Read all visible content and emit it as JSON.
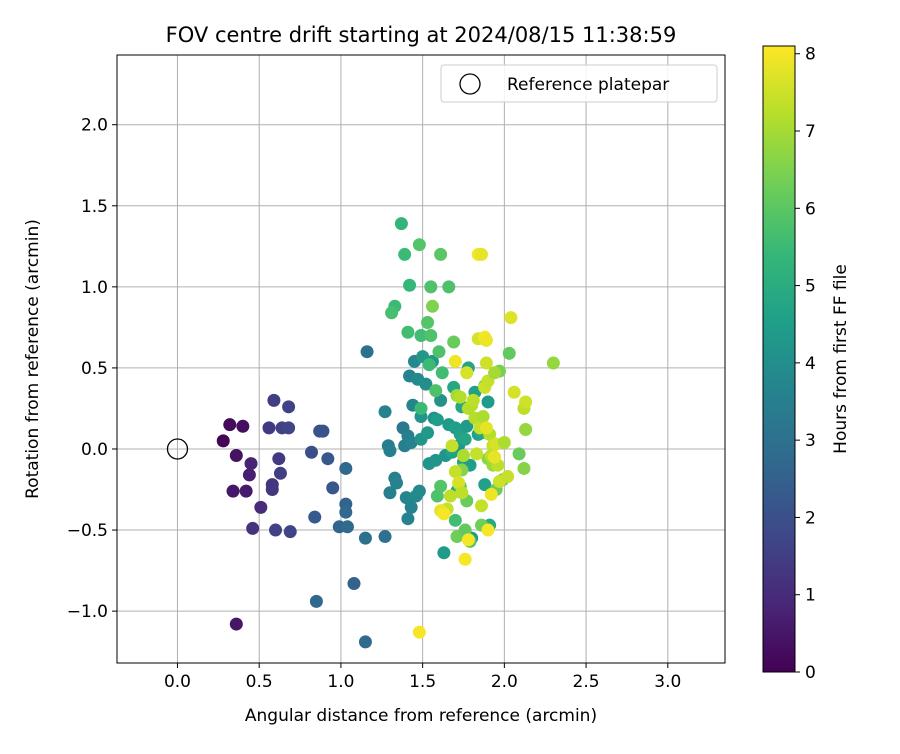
{
  "chart_data": {
    "type": "scatter",
    "title": "FOV centre drift starting at 2024/08/15 11:38:59",
    "xlabel": "Angular distance from reference (arcmin)",
    "ylabel": "Rotation from reference (arcmin)",
    "xlim": [
      -0.37,
      3.35
    ],
    "ylim": [
      -1.32,
      2.43
    ],
    "xticks": [
      "0.0",
      "0.5",
      "1.0",
      "1.5",
      "2.0",
      "2.5",
      "3.0"
    ],
    "yticks": [
      "−1.0",
      "−0.5",
      "0.0",
      "0.5",
      "1.0",
      "1.5",
      "2.0"
    ],
    "grid": true,
    "legend": {
      "position": "upper-right",
      "entries": [
        "Reference platepar"
      ]
    },
    "reference_point": {
      "x": 0.0,
      "y": 0.0,
      "marker": "open-circle"
    },
    "colorbar": {
      "label": "Hours from first FF file",
      "colormap": "viridis",
      "range": [
        0,
        8.1
      ],
      "ticks": [
        "0",
        "1",
        "2",
        "3",
        "4",
        "5",
        "6",
        "7",
        "8"
      ]
    },
    "points": [
      {
        "x": 0.28,
        "y": 0.05,
        "c": 0.1
      },
      {
        "x": 0.32,
        "y": 0.15,
        "c": 0.2
      },
      {
        "x": 0.4,
        "y": 0.14,
        "c": 0.3
      },
      {
        "x": 0.36,
        "y": -0.04,
        "c": 0.4
      },
      {
        "x": 0.34,
        "y": -0.26,
        "c": 0.5
      },
      {
        "x": 0.42,
        "y": -0.26,
        "c": 0.6
      },
      {
        "x": 0.44,
        "y": -0.16,
        "c": 0.7
      },
      {
        "x": 0.45,
        "y": -0.09,
        "c": 0.8
      },
      {
        "x": 0.36,
        "y": -1.08,
        "c": 0.5
      },
      {
        "x": 0.51,
        "y": -0.36,
        "c": 1.0
      },
      {
        "x": 0.46,
        "y": -0.49,
        "c": 1.2
      },
      {
        "x": 0.58,
        "y": -0.22,
        "c": 1.3
      },
      {
        "x": 0.58,
        "y": -0.25,
        "c": 1.3
      },
      {
        "x": 0.62,
        "y": -0.06,
        "c": 1.4
      },
      {
        "x": 0.63,
        "y": -0.15,
        "c": 1.5
      },
      {
        "x": 0.56,
        "y": 0.13,
        "c": 1.4
      },
      {
        "x": 0.59,
        "y": 0.3,
        "c": 1.5
      },
      {
        "x": 0.64,
        "y": 0.13,
        "c": 1.6
      },
      {
        "x": 0.68,
        "y": 0.13,
        "c": 1.7
      },
      {
        "x": 0.68,
        "y": 0.26,
        "c": 1.6
      },
      {
        "x": 0.6,
        "y": -0.5,
        "c": 1.6
      },
      {
        "x": 0.69,
        "y": -0.51,
        "c": 1.7
      },
      {
        "x": 0.82,
        "y": -0.02,
        "c": 2.0
      },
      {
        "x": 0.87,
        "y": 0.11,
        "c": 2.1
      },
      {
        "x": 0.89,
        "y": 0.11,
        "c": 2.1
      },
      {
        "x": 0.92,
        "y": -0.06,
        "c": 2.2
      },
      {
        "x": 0.95,
        "y": -0.24,
        "c": 2.2
      },
      {
        "x": 0.84,
        "y": -0.42,
        "c": 2.3
      },
      {
        "x": 0.99,
        "y": -0.48,
        "c": 2.6
      },
      {
        "x": 1.03,
        "y": -0.12,
        "c": 2.7
      },
      {
        "x": 1.03,
        "y": -0.34,
        "c": 2.6
      },
      {
        "x": 1.03,
        "y": -0.39,
        "c": 2.7
      },
      {
        "x": 1.04,
        "y": -0.48,
        "c": 2.8
      },
      {
        "x": 0.85,
        "y": -0.94,
        "c": 2.7
      },
      {
        "x": 1.08,
        "y": -0.83,
        "c": 2.5
      },
      {
        "x": 1.15,
        "y": -1.19,
        "c": 2.8
      },
      {
        "x": 1.15,
        "y": -0.55,
        "c": 3.0
      },
      {
        "x": 1.27,
        "y": -0.54,
        "c": 3.0
      },
      {
        "x": 1.16,
        "y": 0.6,
        "c": 3.0
      },
      {
        "x": 1.27,
        "y": 0.23,
        "c": 3.6
      },
      {
        "x": 1.29,
        "y": 0.02,
        "c": 3.4
      },
      {
        "x": 1.3,
        "y": -0.01,
        "c": 3.5
      },
      {
        "x": 1.3,
        "y": -0.27,
        "c": 3.5
      },
      {
        "x": 1.33,
        "y": -0.18,
        "c": 3.5
      },
      {
        "x": 1.34,
        "y": -0.21,
        "c": 3.6
      },
      {
        "x": 1.38,
        "y": 0.13,
        "c": 3.3
      },
      {
        "x": 1.39,
        "y": 0.02,
        "c": 3.5
      },
      {
        "x": 1.4,
        "y": -0.3,
        "c": 3.7
      },
      {
        "x": 1.41,
        "y": 0.08,
        "c": 3.5
      },
      {
        "x": 1.41,
        "y": -0.43,
        "c": 3.6
      },
      {
        "x": 1.42,
        "y": 0.45,
        "c": 3.6
      },
      {
        "x": 1.43,
        "y": -0.36,
        "c": 3.6
      },
      {
        "x": 1.43,
        "y": 0.04,
        "c": 3.6
      },
      {
        "x": 1.44,
        "y": 0.27,
        "c": 3.7
      },
      {
        "x": 1.45,
        "y": 0.54,
        "c": 3.8
      },
      {
        "x": 1.46,
        "y": -0.29,
        "c": 3.8
      },
      {
        "x": 1.47,
        "y": 0.43,
        "c": 3.9
      },
      {
        "x": 1.48,
        "y": -0.26,
        "c": 3.9
      },
      {
        "x": 1.49,
        "y": 0.2,
        "c": 4.2
      },
      {
        "x": 1.49,
        "y": 0.06,
        "c": 4.2
      },
      {
        "x": 1.5,
        "y": 0.57,
        "c": 4.3
      },
      {
        "x": 1.52,
        "y": 0.4,
        "c": 4.0
      },
      {
        "x": 1.53,
        "y": 0.1,
        "c": 4.3
      },
      {
        "x": 1.54,
        "y": -0.09,
        "c": 4.2
      },
      {
        "x": 1.56,
        "y": 0.54,
        "c": 4.3
      },
      {
        "x": 1.57,
        "y": 0.19,
        "c": 4.1
      },
      {
        "x": 1.58,
        "y": -0.07,
        "c": 4.2
      },
      {
        "x": 1.59,
        "y": 0.18,
        "c": 4.5
      },
      {
        "x": 1.6,
        "y": 0.6,
        "c": 5.8
      },
      {
        "x": 1.61,
        "y": 0.3,
        "c": 4.1
      },
      {
        "x": 1.62,
        "y": 0.47,
        "c": 5.6
      },
      {
        "x": 1.63,
        "y": -0.64,
        "c": 4.4
      },
      {
        "x": 1.64,
        "y": -0.04,
        "c": 4.2
      },
      {
        "x": 1.66,
        "y": 0.15,
        "c": 4.4
      },
      {
        "x": 1.68,
        "y": -0.02,
        "c": 4.6
      },
      {
        "x": 1.69,
        "y": 0.38,
        "c": 4.8
      },
      {
        "x": 1.7,
        "y": 0.13,
        "c": 4.5
      },
      {
        "x": 1.71,
        "y": -0.26,
        "c": 4.7
      },
      {
        "x": 1.72,
        "y": 0.02,
        "c": 4.3
      },
      {
        "x": 1.73,
        "y": 0.09,
        "c": 4.6
      },
      {
        "x": 1.74,
        "y": 0.26,
        "c": 4.8
      },
      {
        "x": 1.75,
        "y": -0.08,
        "c": 4.7
      },
      {
        "x": 1.76,
        "y": 0.06,
        "c": 4.8
      },
      {
        "x": 1.77,
        "y": 0.14,
        "c": 4.4
      },
      {
        "x": 1.78,
        "y": 0.5,
        "c": 4.7
      },
      {
        "x": 1.79,
        "y": -0.1,
        "c": 4.5
      },
      {
        "x": 1.8,
        "y": -0.55,
        "c": 4.4
      },
      {
        "x": 1.82,
        "y": 0.35,
        "c": 4.6
      },
      {
        "x": 1.84,
        "y": 0.09,
        "c": 4.6
      },
      {
        "x": 1.86,
        "y": 0.1,
        "c": 4.8
      },
      {
        "x": 1.88,
        "y": -0.22,
        "c": 4.6
      },
      {
        "x": 1.9,
        "y": 0.29,
        "c": 4.4
      },
      {
        "x": 1.91,
        "y": -0.47,
        "c": 4.9
      },
      {
        "x": 1.37,
        "y": 1.39,
        "c": 5.3
      },
      {
        "x": 1.39,
        "y": 1.2,
        "c": 5.5
      },
      {
        "x": 1.42,
        "y": 1.01,
        "c": 5.4
      },
      {
        "x": 1.33,
        "y": 0.88,
        "c": 5.5
      },
      {
        "x": 1.31,
        "y": 0.84,
        "c": 5.7
      },
      {
        "x": 1.41,
        "y": 0.72,
        "c": 5.6
      },
      {
        "x": 1.48,
        "y": 1.26,
        "c": 5.9
      },
      {
        "x": 1.49,
        "y": 0.7,
        "c": 5.6
      },
      {
        "x": 1.53,
        "y": 0.78,
        "c": 5.9
      },
      {
        "x": 1.55,
        "y": 1.0,
        "c": 5.8
      },
      {
        "x": 1.56,
        "y": 0.88,
        "c": 6.5
      },
      {
        "x": 1.58,
        "y": 0.36,
        "c": 5.8
      },
      {
        "x": 1.61,
        "y": 1.2,
        "c": 6.0
      },
      {
        "x": 1.66,
        "y": 1.0,
        "c": 5.8
      },
      {
        "x": 1.69,
        "y": 0.66,
        "c": 6.2
      },
      {
        "x": 1.55,
        "y": 0.7,
        "c": 5.8
      },
      {
        "x": 1.54,
        "y": 0.52,
        "c": 5.5
      },
      {
        "x": 1.49,
        "y": 0.25,
        "c": 5.5
      },
      {
        "x": 1.59,
        "y": -0.29,
        "c": 5.8
      },
      {
        "x": 1.61,
        "y": -0.23,
        "c": 5.9
      },
      {
        "x": 1.7,
        "y": -0.44,
        "c": 5.6
      },
      {
        "x": 1.71,
        "y": -0.54,
        "c": 6.3
      },
      {
        "x": 1.73,
        "y": -0.23,
        "c": 6.1
      },
      {
        "x": 1.76,
        "y": -0.5,
        "c": 6.1
      },
      {
        "x": 1.79,
        "y": -0.57,
        "c": 5.9
      },
      {
        "x": 1.74,
        "y": -0.13,
        "c": 6.6
      },
      {
        "x": 1.77,
        "y": -0.32,
        "c": 6.2
      },
      {
        "x": 1.86,
        "y": -0.47,
        "c": 6.3
      },
      {
        "x": 1.88,
        "y": 0.39,
        "c": 6.2
      },
      {
        "x": 1.9,
        "y": -0.06,
        "c": 6.7
      },
      {
        "x": 1.93,
        "y": -0.1,
        "c": 6.9
      },
      {
        "x": 1.95,
        "y": -0.25,
        "c": 6.3
      },
      {
        "x": 1.97,
        "y": 0.48,
        "c": 6.4
      },
      {
        "x": 1.99,
        "y": -0.19,
        "c": 6.2
      },
      {
        "x": 2.03,
        "y": 0.59,
        "c": 6.1
      },
      {
        "x": 2.09,
        "y": -0.03,
        "c": 6.2
      },
      {
        "x": 2.12,
        "y": -0.12,
        "c": 6.6
      },
      {
        "x": 2.13,
        "y": 0.12,
        "c": 6.8
      },
      {
        "x": 2.3,
        "y": 0.53,
        "c": 6.8
      },
      {
        "x": 1.71,
        "y": 0.33,
        "c": 7.0
      },
      {
        "x": 1.73,
        "y": 0.32,
        "c": 7.2
      },
      {
        "x": 1.75,
        "y": -0.04,
        "c": 7.1
      },
      {
        "x": 1.77,
        "y": 0.47,
        "c": 7.6
      },
      {
        "x": 1.78,
        "y": 0.25,
        "c": 7.2
      },
      {
        "x": 1.8,
        "y": 0.27,
        "c": 7.2
      },
      {
        "x": 1.81,
        "y": 0.3,
        "c": 7.3
      },
      {
        "x": 1.82,
        "y": 0.19,
        "c": 7.2
      },
      {
        "x": 1.83,
        "y": -0.03,
        "c": 7.4
      },
      {
        "x": 1.84,
        "y": 0.68,
        "c": 7.6
      },
      {
        "x": 1.85,
        "y": 0.13,
        "c": 7.4
      },
      {
        "x": 1.86,
        "y": -0.35,
        "c": 7.4
      },
      {
        "x": 1.87,
        "y": 0.2,
        "c": 7.1
      },
      {
        "x": 1.88,
        "y": 0.38,
        "c": 7.5
      },
      {
        "x": 1.89,
        "y": 0.53,
        "c": 7.5
      },
      {
        "x": 1.9,
        "y": 0.42,
        "c": 7.4
      },
      {
        "x": 1.91,
        "y": 0.09,
        "c": 7.2
      },
      {
        "x": 1.92,
        "y": -0.04,
        "c": 7.3
      },
      {
        "x": 1.93,
        "y": 0.02,
        "c": 7.4
      },
      {
        "x": 1.94,
        "y": 0.47,
        "c": 7.0
      },
      {
        "x": 1.95,
        "y": 0.03,
        "c": 7.6
      },
      {
        "x": 1.96,
        "y": -0.1,
        "c": 7.3
      },
      {
        "x": 1.97,
        "y": -0.2,
        "c": 7.5
      },
      {
        "x": 2.0,
        "y": 0.04,
        "c": 7.1
      },
      {
        "x": 2.02,
        "y": -0.17,
        "c": 7.4
      },
      {
        "x": 2.06,
        "y": 0.35,
        "c": 7.6
      },
      {
        "x": 2.12,
        "y": 0.25,
        "c": 7.3
      },
      {
        "x": 2.13,
        "y": 0.29,
        "c": 7.5
      },
      {
        "x": 1.68,
        "y": 0.02,
        "c": 7.4
      },
      {
        "x": 1.7,
        "y": -0.14,
        "c": 7.4
      },
      {
        "x": 1.72,
        "y": -0.21,
        "c": 7.6
      },
      {
        "x": 1.74,
        "y": -0.27,
        "c": 7.3
      },
      {
        "x": 1.65,
        "y": -0.37,
        "c": 7.4
      },
      {
        "x": 1.67,
        "y": -0.29,
        "c": 7.3
      },
      {
        "x": 1.61,
        "y": -0.38,
        "c": 7.8
      },
      {
        "x": 1.63,
        "y": -0.4,
        "c": 8.0
      },
      {
        "x": 1.7,
        "y": 0.54,
        "c": 7.9
      },
      {
        "x": 1.76,
        "y": -0.68,
        "c": 8.0
      },
      {
        "x": 1.78,
        "y": -0.56,
        "c": 8.0
      },
      {
        "x": 1.84,
        "y": 1.2,
        "c": 8.0
      },
      {
        "x": 1.86,
        "y": 1.2,
        "c": 7.8
      },
      {
        "x": 1.88,
        "y": 0.69,
        "c": 8.0
      },
      {
        "x": 1.89,
        "y": 0.67,
        "c": 7.9
      },
      {
        "x": 1.9,
        "y": -0.5,
        "c": 8.0
      },
      {
        "x": 1.92,
        "y": -0.28,
        "c": 7.9
      },
      {
        "x": 1.94,
        "y": -0.05,
        "c": 7.8
      },
      {
        "x": 1.89,
        "y": 0.13,
        "c": 7.8
      },
      {
        "x": 2.04,
        "y": 0.81,
        "c": 7.7
      },
      {
        "x": 1.48,
        "y": -1.13,
        "c": 8.0
      }
    ]
  }
}
